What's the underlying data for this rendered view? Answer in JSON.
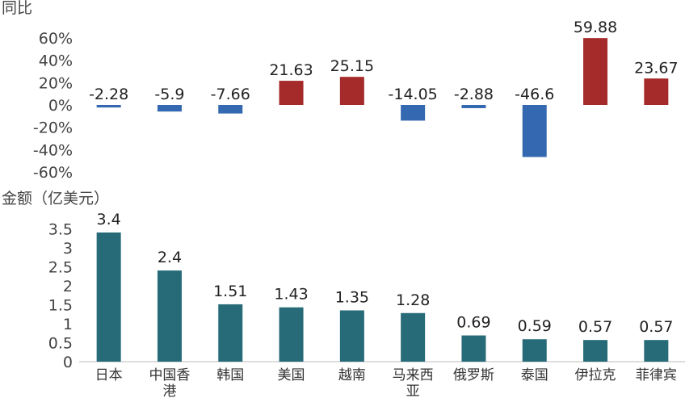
{
  "chart_data": [
    {
      "type": "bar",
      "ylabel": "同比",
      "categories": [
        "日本",
        "中国香港",
        "韩国",
        "美国",
        "越南",
        "马来西亚",
        "俄罗斯",
        "泰国",
        "伊拉克",
        "菲律宾"
      ],
      "values": [
        -2.28,
        -5.9,
        -7.66,
        21.63,
        25.15,
        -14.05,
        -2.88,
        -46.6,
        59.88,
        23.67
      ],
      "value_labels": [
        "-2.28",
        "-5.9",
        "-7.66",
        "21.63",
        "25.15",
        "-14.05",
        "-2.88",
        "-46.6",
        "59.88",
        "23.67"
      ],
      "ylim": [
        -60,
        60
      ],
      "yticks": [
        "60%",
        "40%",
        "20%",
        "0%",
        "-20%",
        "-40%",
        "-60%"
      ],
      "ytick_values": [
        60,
        40,
        20,
        0,
        -20,
        -40,
        -60
      ],
      "colors": {
        "positive": "#A52A2A",
        "negative": "#3468B0"
      },
      "grid": false
    },
    {
      "type": "bar",
      "ylabel": "金额（亿美元）",
      "categories": [
        "日本",
        "中国香港",
        "韩国",
        "美国",
        "越南",
        "马来西亚",
        "俄罗斯",
        "泰国",
        "伊拉克",
        "菲律宾"
      ],
      "category_lines": [
        [
          "日本"
        ],
        [
          "中国香",
          "港"
        ],
        [
          "韩国"
        ],
        [
          "美国"
        ],
        [
          "越南"
        ],
        [
          "马来西",
          "亚"
        ],
        [
          "俄罗斯"
        ],
        [
          "泰国"
        ],
        [
          "伊拉克"
        ],
        [
          "菲律宾"
        ]
      ],
      "values": [
        3.4,
        2.4,
        1.51,
        1.43,
        1.35,
        1.28,
        0.69,
        0.59,
        0.57,
        0.57
      ],
      "value_labels": [
        "3.4",
        "2.4",
        "1.51",
        "1.43",
        "1.35",
        "1.28",
        "0.69",
        "0.59",
        "0.57",
        "0.57"
      ],
      "ylim": [
        0,
        3.4
      ],
      "yticks": [
        "3.5",
        "3",
        "2.5",
        "2",
        "1.5",
        "1",
        "0.5",
        "0"
      ],
      "ytick_values": [
        3.5,
        3,
        2.5,
        2,
        1.5,
        1,
        0.5,
        0
      ],
      "colors": {
        "bar": "#276A78",
        "axis": "#BBBBBB"
      },
      "grid": false
    }
  ]
}
